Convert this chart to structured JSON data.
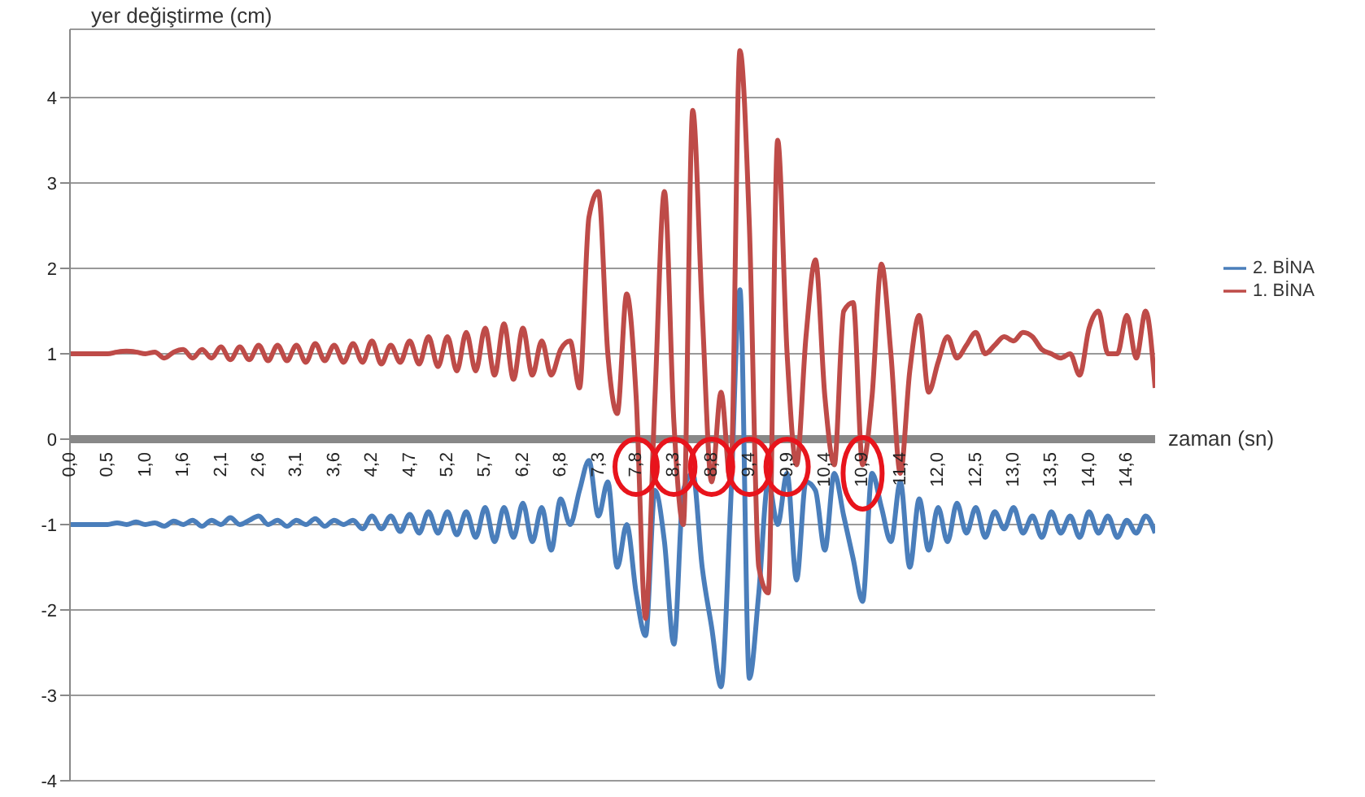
{
  "chart_data": {
    "type": "line",
    "ylabel": "yer değiştirme (cm)",
    "xlabel": "zaman (sn)",
    "categories": [
      "0,0",
      null,
      null,
      null,
      "0,5",
      null,
      null,
      null,
      "1,0",
      null,
      null,
      null,
      "1,6",
      null,
      null,
      null,
      "2,1",
      null,
      null,
      null,
      "2,6",
      null,
      null,
      null,
      "3,1",
      null,
      null,
      null,
      "3,6",
      null,
      null,
      null,
      "4,2",
      null,
      null,
      null,
      "4,7",
      null,
      null,
      null,
      "5,2",
      null,
      null,
      null,
      "5,7",
      null,
      null,
      null,
      "6,2",
      null,
      null,
      null,
      "6,8",
      null,
      null,
      null,
      "7,3",
      null,
      null,
      null,
      "7,8",
      null,
      null,
      null,
      "8,3",
      null,
      null,
      null,
      "8,8",
      null,
      null,
      null,
      "9,4",
      null,
      null,
      null,
      "9,9",
      null,
      null,
      null,
      "10,4",
      null,
      null,
      null,
      "10,9",
      null,
      null,
      null,
      "11,4",
      null,
      null,
      null,
      "12,0",
      null,
      null,
      null,
      "12,5",
      null,
      null,
      null,
      "13,0",
      null,
      null,
      null,
      "13,5",
      null,
      null,
      null,
      "14,0",
      null,
      null,
      null,
      "14,6",
      null,
      null,
      null
    ],
    "series": [
      {
        "name": "2. BİNA",
        "color": "#4a7ebb",
        "values": [
          -1,
          -1,
          -1,
          -1,
          -1,
          -0.98,
          -1,
          -0.97,
          -1,
          -0.98,
          -1.02,
          -0.96,
          -1,
          -0.95,
          -1.02,
          -0.95,
          -1,
          -0.92,
          -1,
          -0.95,
          -0.9,
          -1,
          -0.95,
          -1.02,
          -0.95,
          -1,
          -0.93,
          -1.02,
          -0.95,
          -1,
          -0.95,
          -1.05,
          -0.9,
          -1.05,
          -0.9,
          -1.08,
          -0.88,
          -1.1,
          -0.85,
          -1.1,
          -0.85,
          -1.12,
          -0.85,
          -1.15,
          -0.8,
          -1.2,
          -0.8,
          -1.15,
          -0.75,
          -1.2,
          -0.8,
          -1.3,
          -0.7,
          -1,
          -0.6,
          -0.25,
          -0.9,
          -0.5,
          -1.5,
          -1,
          -1.8,
          -2.3,
          -0.6,
          -1.2,
          -2.4,
          -0.6,
          -0.4,
          -1.5,
          -2.2,
          -2.9,
          -0.8,
          1.75,
          -2.8,
          -1.8,
          -0.5,
          -1,
          -0.4,
          -1.65,
          -0.5,
          -0.6,
          -1.3,
          -0.4,
          -0.9,
          -1.4,
          -1.9,
          -0.4,
          -0.8,
          -1.2,
          -0.5,
          -1.5,
          -0.7,
          -1.3,
          -0.8,
          -1.2,
          -0.75,
          -1.1,
          -0.8,
          -1.15,
          -0.85,
          -1.05,
          -0.8,
          -1.1,
          -0.9,
          -1.15,
          -0.85,
          -1.1,
          -0.9,
          -1.15,
          -0.85,
          -1.1,
          -0.9,
          -1.15,
          -0.95,
          -1.1,
          -0.9,
          -1.1
        ]
      },
      {
        "name": "1. BİNA",
        "color": "#be4b48",
        "values": [
          1,
          1,
          1,
          1,
          1,
          1.02,
          1.03,
          1.02,
          1,
          1.02,
          0.95,
          1.02,
          1.05,
          0.95,
          1.05,
          0.95,
          1.08,
          0.93,
          1.08,
          0.93,
          1.1,
          0.92,
          1.1,
          0.92,
          1.1,
          0.9,
          1.12,
          0.92,
          1.1,
          0.9,
          1.12,
          0.9,
          1.15,
          0.88,
          1.1,
          0.9,
          1.15,
          0.88,
          1.2,
          0.85,
          1.2,
          0.8,
          1.25,
          0.8,
          1.3,
          0.75,
          1.35,
          0.7,
          1.3,
          0.75,
          1.15,
          0.75,
          1.05,
          1.15,
          0.6,
          2.6,
          2.9,
          1,
          0.3,
          1.7,
          0.5,
          -2.1,
          0.5,
          2.9,
          0.2,
          -1,
          3.85,
          1.5,
          -0.5,
          0.55,
          -0.5,
          4.55,
          2.5,
          -1.5,
          -1.8,
          3.5,
          1,
          -0.3,
          1.2,
          2.1,
          0.5,
          -0.3,
          1.5,
          1.6,
          -0.3,
          0.5,
          2.05,
          1,
          -0.4,
          0.8,
          1.45,
          0.55,
          0.9,
          1.2,
          0.95,
          1.1,
          1.25,
          1,
          1.1,
          1.2,
          1.15,
          1.25,
          1.2,
          1.05,
          1,
          0.95,
          1,
          0.75,
          1.3,
          1.5,
          1,
          1,
          1.45,
          0.95,
          1.5,
          0.6
        ]
      }
    ],
    "ylim": [
      -4,
      4.8
    ],
    "yticks": [
      -4,
      -3,
      -2,
      -1,
      0,
      1,
      2,
      3,
      4
    ],
    "grid": "y",
    "legend": "right"
  }
}
